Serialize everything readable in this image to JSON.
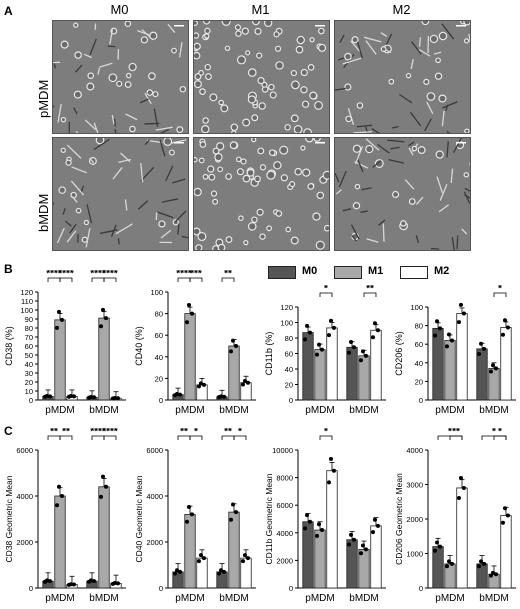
{
  "panels": {
    "a": "A",
    "b": "B",
    "c": "C"
  },
  "columns": [
    "M0",
    "M1",
    "M2"
  ],
  "rows": [
    "pMDM",
    "bMDM"
  ],
  "legend": [
    {
      "label": "M0",
      "color": "#555555"
    },
    {
      "label": "M1",
      "color": "#a8a8a8"
    },
    {
      "label": "M2",
      "color": "#ffffff"
    }
  ],
  "chart_data": [
    {
      "type": "bar",
      "ylabel": "CD38 (%)",
      "ylim": [
        0,
        120
      ],
      "yticks": [
        0,
        10,
        20,
        30,
        40,
        50,
        60,
        70,
        80,
        90,
        100,
        110,
        120
      ],
      "categories": [
        "pMDM",
        "bMDM"
      ],
      "series": [
        {
          "name": "M0",
          "values": [
            4,
            3
          ]
        },
        {
          "name": "M1",
          "values": [
            89,
            91
          ]
        },
        {
          "name": "M2",
          "values": [
            4,
            2
          ]
        }
      ],
      "significance": [
        {
          "group": 0,
          "from": 0,
          "to": 1,
          "label": "****"
        },
        {
          "group": 0,
          "from": 1,
          "to": 2,
          "label": "****"
        },
        {
          "group": 1,
          "from": 0,
          "to": 1,
          "label": "****"
        },
        {
          "group": 1,
          "from": 1,
          "to": 2,
          "label": "****"
        }
      ]
    },
    {
      "type": "bar",
      "ylabel": "CD40 (%)",
      "ylim": [
        0,
        100
      ],
      "yticks": [
        0,
        20,
        40,
        60,
        80,
        100
      ],
      "categories": [
        "pMDM",
        "bMDM"
      ],
      "series": [
        {
          "name": "M0",
          "values": [
            5,
            3
          ]
        },
        {
          "name": "M1",
          "values": [
            80,
            50
          ]
        },
        {
          "name": "M2",
          "values": [
            14,
            16
          ]
        }
      ],
      "significance": [
        {
          "group": 0,
          "from": 0,
          "to": 1,
          "label": "****"
        },
        {
          "group": 0,
          "from": 1,
          "to": 2,
          "label": "***"
        },
        {
          "group": 1,
          "from": 0,
          "to": 1,
          "label": "**"
        }
      ]
    },
    {
      "type": "bar",
      "ylabel": "CD11b (%)",
      "ylim": [
        0,
        120
      ],
      "yticks": [
        0,
        20,
        40,
        60,
        80,
        100,
        120
      ],
      "categories": [
        "pMDM",
        "bMDM"
      ],
      "series": [
        {
          "name": "M0",
          "values": [
            87,
            68
          ]
        },
        {
          "name": "M1",
          "values": [
            65,
            57
          ]
        },
        {
          "name": "M2",
          "values": [
            93,
            90
          ]
        }
      ],
      "significance": [
        {
          "group": 0,
          "from": 1,
          "to": 2,
          "label": "*"
        },
        {
          "group": 1,
          "from": 1,
          "to": 2,
          "label": "**"
        }
      ]
    },
    {
      "type": "bar",
      "ylabel": "CD206 (%)",
      "ylim": [
        0,
        100
      ],
      "yticks": [
        0,
        20,
        40,
        60,
        80,
        100
      ],
      "categories": [
        "pMDM",
        "bMDM"
      ],
      "series": [
        {
          "name": "M0",
          "values": [
            77,
            55
          ]
        },
        {
          "name": "M1",
          "values": [
            64,
            34
          ]
        },
        {
          "name": "M2",
          "values": [
            93,
            78
          ]
        }
      ],
      "significance": [
        {
          "group": 1,
          "from": 1,
          "to": 2,
          "label": "*"
        }
      ]
    },
    {
      "type": "bar",
      "ylabel": "CD38 Geometric Mean",
      "ylim": [
        0,
        6000
      ],
      "yticks": [
        0,
        2000,
        4000,
        6000
      ],
      "categories": [
        "pMDM",
        "bMDM"
      ],
      "series": [
        {
          "name": "M0",
          "values": [
            300,
            300
          ]
        },
        {
          "name": "M1",
          "values": [
            4000,
            4400
          ]
        },
        {
          "name": "M2",
          "values": [
            150,
            200
          ]
        }
      ],
      "significance": [
        {
          "group": 0,
          "from": 0,
          "to": 1,
          "label": "**"
        },
        {
          "group": 0,
          "from": 1,
          "to": 2,
          "label": "**"
        },
        {
          "group": 1,
          "from": 0,
          "to": 1,
          "label": "****"
        },
        {
          "group": 1,
          "from": 1,
          "to": 2,
          "label": "****"
        }
      ]
    },
    {
      "type": "bar",
      "ylabel": "CD40 Geometric Mean",
      "ylim": [
        0,
        6000
      ],
      "yticks": [
        0,
        2000,
        4000,
        6000
      ],
      "categories": [
        "pMDM",
        "bMDM"
      ],
      "series": [
        {
          "name": "M0",
          "values": [
            700,
            700
          ]
        },
        {
          "name": "M1",
          "values": [
            3200,
            3300
          ]
        },
        {
          "name": "M2",
          "values": [
            1300,
            1300
          ]
        }
      ],
      "significance": [
        {
          "group": 0,
          "from": 0,
          "to": 1,
          "label": "**"
        },
        {
          "group": 0,
          "from": 1,
          "to": 2,
          "label": "*"
        },
        {
          "group": 1,
          "from": 0,
          "to": 1,
          "label": "**"
        },
        {
          "group": 1,
          "from": 1,
          "to": 2,
          "label": "*"
        }
      ]
    },
    {
      "type": "bar",
      "ylabel": "CD11b Geometric Mean",
      "ylim": [
        0,
        10000
      ],
      "yticks": [
        0,
        2000,
        4000,
        6000,
        8000,
        10000
      ],
      "categories": [
        "pMDM",
        "bMDM"
      ],
      "series": [
        {
          "name": "M0",
          "values": [
            4800,
            3500
          ]
        },
        {
          "name": "M1",
          "values": [
            4200,
            2800
          ]
        },
        {
          "name": "M2",
          "values": [
            8500,
            4500
          ]
        }
      ],
      "significance": [
        {
          "group": 0,
          "from": 1,
          "to": 2,
          "label": "*"
        }
      ]
    },
    {
      "type": "bar",
      "ylabel": "CD206 Geometric Mean",
      "ylim": [
        0,
        4000
      ],
      "yticks": [
        0,
        1000,
        2000,
        3000,
        4000
      ],
      "categories": [
        "pMDM",
        "bMDM"
      ],
      "series": [
        {
          "name": "M0",
          "values": [
            1200,
            700
          ]
        },
        {
          "name": "M1",
          "values": [
            700,
            400
          ]
        },
        {
          "name": "M2",
          "values": [
            2900,
            2100
          ]
        }
      ],
      "significance": [
        {
          "group": 0,
          "from": 0,
          "to": 2,
          "label": "*"
        },
        {
          "group": 0,
          "from": 1,
          "to": 2,
          "label": "**"
        },
        {
          "group": 1,
          "from": 0,
          "to": 2,
          "label": "*"
        },
        {
          "group": 1,
          "from": 1,
          "to": 2,
          "label": "*"
        }
      ]
    }
  ]
}
